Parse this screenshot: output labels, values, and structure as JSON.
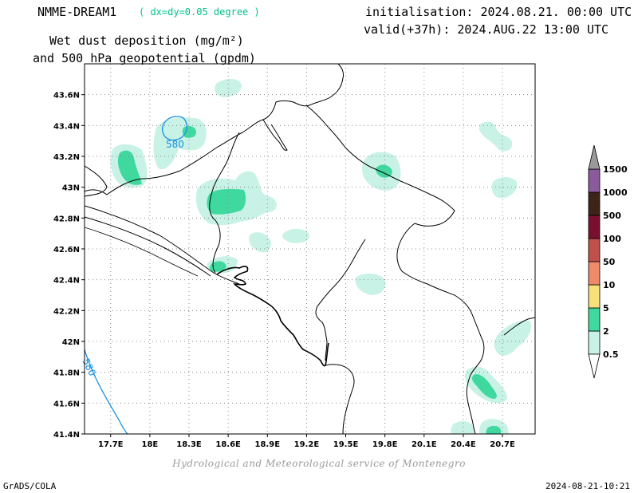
{
  "header": {
    "model_name": "NMME-DREAM1",
    "resolution": "( dx=dy=0.05 degree )",
    "init_line": "initialisation: 2024.08.21. 00:00 UTC",
    "valid_line": "valid(+37h): 2024.AUG.22 13:00 UTC",
    "title_line1": "Wet dust deposition (mg/m²)",
    "title_line2": "and 500 hPa geopotential (gpdm)"
  },
  "map": {
    "lon_range": [
      17.5,
      20.95
    ],
    "lat_range": [
      41.4,
      43.8
    ],
    "lon_ticks": [
      "17.7E",
      "18E",
      "18.3E",
      "18.6E",
      "18.9E",
      "19.2E",
      "19.5E",
      "19.8E",
      "20.1E",
      "20.4E",
      "20.7E"
    ],
    "lat_ticks": [
      "41.4N",
      "41.6N",
      "41.8N",
      "42N",
      "42.2N",
      "42.4N",
      "42.6N",
      "42.8N",
      "43N",
      "43.2N",
      "43.4N",
      "43.6N"
    ],
    "grid": "dotted",
    "contour_labels": [
      "580",
      "580"
    ]
  },
  "legend": {
    "levels": [
      "0.5",
      "2",
      "5",
      "10",
      "50",
      "100",
      "500",
      "1000",
      "1500"
    ],
    "colors": [
      "#c8f2e6",
      "#3fd9a0",
      "#f5e07a",
      "#ec8a6a",
      "#c0504a",
      "#7a1030",
      "#3d2418",
      "#8a5a9c",
      "#9a9a9a"
    ]
  },
  "credit": "Hydrological and Meteorological service of Montenegro",
  "footer": {
    "left": "GrADS/COLA",
    "right": "2024-08-21-10:21"
  }
}
